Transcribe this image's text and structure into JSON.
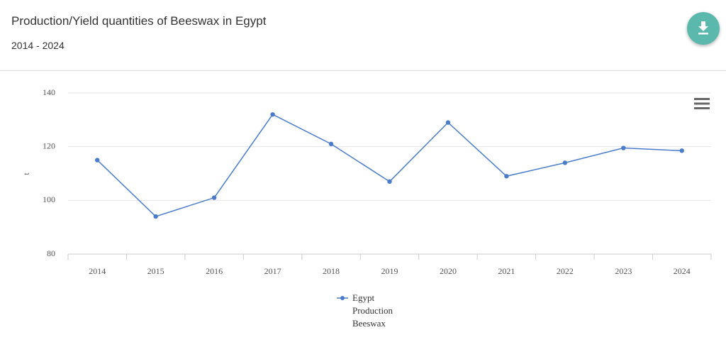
{
  "header": {
    "title": "Production/Yield quantities of Beeswax in Egypt",
    "subtitle": "2014 - 2024"
  },
  "chart_data": {
    "type": "line",
    "y_label": "t",
    "categories": [
      "2014",
      "2015",
      "2016",
      "2017",
      "2018",
      "2019",
      "2020",
      "2021",
      "2022",
      "2023",
      "2024"
    ],
    "series": [
      {
        "name": "Egypt Production Beeswax",
        "color": "#4a7cc9",
        "values": [
          115,
          94,
          101,
          132,
          121,
          107,
          129,
          109,
          114,
          119.5,
          118.5
        ]
      }
    ],
    "ylim": [
      80,
      140
    ],
    "yticks": [
      80,
      100,
      120,
      140
    ],
    "grid": true
  }
}
